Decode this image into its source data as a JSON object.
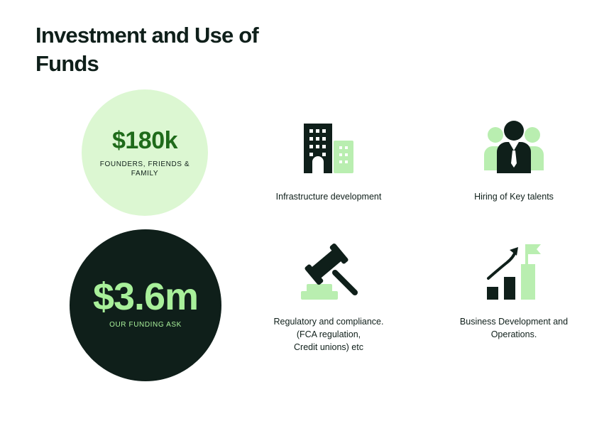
{
  "title": "Investment and Use of Funds",
  "circles": [
    {
      "amount": "$180k",
      "caption": "FOUNDERS, FRIENDS & FAMILY"
    },
    {
      "amount": "$3.6m",
      "caption": "OUR FUNDING ASK"
    }
  ],
  "uses": [
    {
      "icon": "building-icon",
      "label": "Infrastructure development"
    },
    {
      "icon": "team-icon",
      "label": "Hiring of Key talents"
    },
    {
      "icon": "gavel-icon",
      "label": "Regulatory and compliance.\n(FCA regulation,\nCredit unions) etc"
    },
    {
      "icon": "growth-chart-icon",
      "label": "Business Development and\nOperations."
    }
  ],
  "colors": {
    "dark": "#0f1f1a",
    "light_green": "#dcf7d2",
    "accent_green": "#a8f09a",
    "mid_green": "#b9eeb0",
    "text_green": "#1f6b1a"
  }
}
